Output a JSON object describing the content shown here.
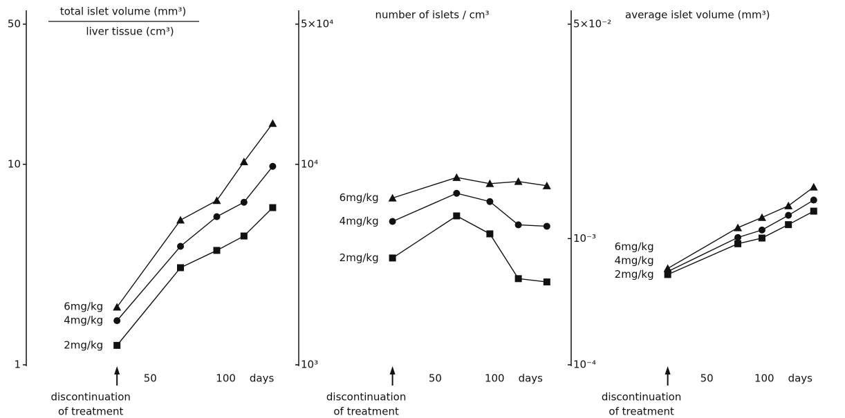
{
  "chart_data": [
    {
      "type": "line",
      "title": [
        "total islet volume (mm³)",
        "liver tissue (cm³)"
      ],
      "x_label": "days",
      "annotation": [
        "discontinuation",
        "of treatment"
      ],
      "x": [
        28,
        70,
        94,
        112,
        131
      ],
      "xlim": [
        -32,
        145
      ],
      "xticks": [
        50,
        100
      ],
      "ylim": [
        1,
        50
      ],
      "yticks": [
        1,
        10,
        50
      ],
      "log_y": true,
      "series": [
        {
          "name": "6mg/kg",
          "color": "#111111",
          "marker": "triangle",
          "values": [
            1.94,
            5.27,
            6.6,
            10.3,
            16.0
          ]
        },
        {
          "name": "4mg/kg",
          "color": "#111111",
          "marker": "circle",
          "values": [
            1.66,
            3.9,
            5.48,
            6.47,
            9.77
          ]
        },
        {
          "name": "2mg/kg",
          "color": "#111111",
          "marker": "square",
          "values": [
            1.25,
            3.05,
            3.72,
            4.39,
            6.08
          ]
        }
      ]
    },
    {
      "type": "line",
      "title": [
        "number of islets / cm³"
      ],
      "x_label": "days",
      "annotation": [
        "discontinuation",
        "of treatment"
      ],
      "x": [
        14,
        68,
        96,
        120,
        144
      ],
      "xlim": [
        -65,
        161
      ],
      "xticks": [
        50,
        100
      ],
      "ylim": [
        1000,
        50000
      ],
      "yticks": [
        {
          "value": 1000,
          "label": "10³"
        },
        {
          "value": 10000,
          "label": "10⁴"
        },
        {
          "value": 50000,
          "label": "5×10⁴"
        }
      ],
      "log_y": true,
      "series": [
        {
          "name": "6mg/kg",
          "color": "#111111",
          "marker": "triangle",
          "values": [
            6790,
            8600,
            8010,
            8210,
            7820
          ]
        },
        {
          "name": "4mg/kg",
          "color": "#111111",
          "marker": "circle",
          "values": [
            5190,
            7170,
            6520,
            4990,
            4910
          ]
        },
        {
          "name": "2mg/kg",
          "color": "#111111",
          "marker": "square",
          "values": [
            3410,
            5530,
            4500,
            2690,
            2590
          ]
        }
      ]
    },
    {
      "type": "line",
      "title": [
        "average islet volume (mm³)"
      ],
      "x_label": "days",
      "annotation": [
        "discontinuation",
        "of treatment"
      ],
      "x": [
        16,
        77,
        98,
        121,
        143
      ],
      "xlim": [
        -68,
        163
      ],
      "xticks": [
        50,
        100
      ],
      "ylim": [
        0.0001,
        0.05
      ],
      "yticks": [
        {
          "value": 0.0001,
          "label": "10⁻⁴"
        },
        {
          "value": 0.001,
          "label": "10⁻³"
        },
        {
          "value": 0.05,
          "label": "5×10⁻²"
        }
      ],
      "log_y": true,
      "series": [
        {
          "name": "6mg/kg",
          "color": "#111111",
          "marker": "triangle",
          "values": [
            0.00058,
            0.00122,
            0.00147,
            0.00182,
            0.00256
          ]
        },
        {
          "name": "4mg/kg",
          "color": "#111111",
          "marker": "circle",
          "values": [
            0.000548,
            0.00102,
            0.00117,
            0.00153,
            0.00202
          ]
        },
        {
          "name": "2mg/kg",
          "color": "#111111",
          "marker": "square",
          "values": [
            0.000519,
            0.00091,
            0.00101,
            0.00129,
            0.00165
          ]
        }
      ]
    }
  ]
}
